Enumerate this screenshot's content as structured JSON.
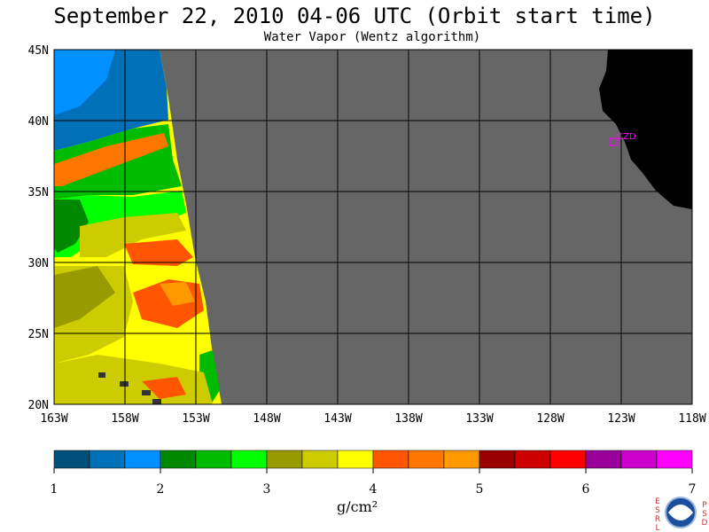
{
  "header": {
    "title": "September 22, 2010  04-06 UTC  (Orbit start time)",
    "subtitle": "Water Vapor (Wentz algorithm)"
  },
  "map": {
    "lon_range": [
      -163,
      -118
    ],
    "lat_range": [
      20,
      45
    ],
    "lat_ticks": [
      {
        "value": 45,
        "label": "45N"
      },
      {
        "value": 40,
        "label": "40N"
      },
      {
        "value": 35,
        "label": "35N"
      },
      {
        "value": 30,
        "label": "30N"
      },
      {
        "value": 25,
        "label": "25N"
      },
      {
        "value": 20,
        "label": "20N"
      }
    ],
    "lon_ticks": [
      {
        "value": -163,
        "label": "163W"
      },
      {
        "value": -158,
        "label": "158W"
      },
      {
        "value": -153,
        "label": "153W"
      },
      {
        "value": -148,
        "label": "148W"
      },
      {
        "value": -143,
        "label": "143W"
      },
      {
        "value": -138,
        "label": "138W"
      },
      {
        "value": -133,
        "label": "133W"
      },
      {
        "value": -128,
        "label": "128W"
      },
      {
        "value": -123,
        "label": "123W"
      },
      {
        "value": -118,
        "label": "118W"
      }
    ],
    "station": {
      "label": "CZD",
      "lon": -123.5,
      "lat": 38.5
    },
    "colors": {
      "no_data": "#666666",
      "land": "#000000",
      "grid": "#000000",
      "station": "#ff00ff"
    }
  },
  "colorbar": {
    "ticks": [
      "1",
      "2",
      "3",
      "4",
      "5",
      "6",
      "7"
    ],
    "unit": "g/cm²",
    "colors": [
      "#00507a",
      "#0070b8",
      "#0090ff",
      "#008800",
      "#00bb00",
      "#00ff00",
      "#999900",
      "#cccc00",
      "#ffff00",
      "#ff5500",
      "#ff7700",
      "#ff9900",
      "#990000",
      "#cc0000",
      "#ff0000",
      "#990099",
      "#cc00cc",
      "#ff00ff"
    ]
  },
  "logo": {
    "left_letters": [
      "E",
      "S",
      "R",
      "L"
    ],
    "right_letters": [
      "P",
      "S",
      "D"
    ],
    "badge": "NOAA"
  }
}
